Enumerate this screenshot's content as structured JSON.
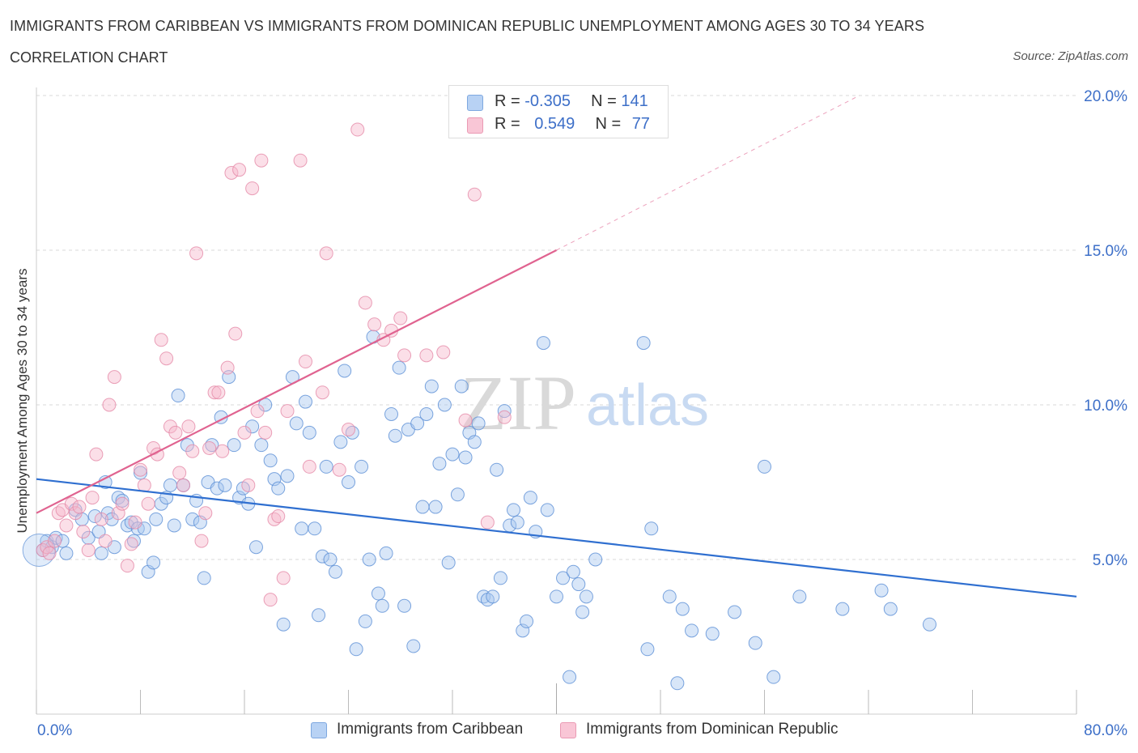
{
  "title": "IMMIGRANTS FROM CARIBBEAN VS IMMIGRANTS FROM DOMINICAN REPUBLIC UNEMPLOYMENT AMONG AGES 30 TO 34 YEARS",
  "subtitle": "CORRELATION CHART",
  "source": "Source: ZipAtlas.com",
  "watermark": {
    "zip": "ZIP",
    "atlas": "atlas"
  },
  "legend_top": {
    "rows": [
      {
        "r_label": "R = ",
        "r_value": "-0.305",
        "n_label": "N = ",
        "n_value": "141"
      },
      {
        "r_label": "R = ",
        "r_value": "0.549",
        "n_label": "N = ",
        "n_value": "77"
      }
    ]
  },
  "colors": {
    "blue_fill": "#a8c8f0",
    "blue_stroke": "#5b8fd6",
    "blue_line": "#2f6fd0",
    "pink_fill": "#f6b8cc",
    "pink_stroke": "#e58aa8",
    "pink_line": "#e06390",
    "tick_label": "#3d6fc8",
    "grid": "#d8d8d8"
  },
  "chart_data": {
    "type": "scatter",
    "title": "IMMIGRANTS FROM CARIBBEAN VS IMMIGRANTS FROM DOMINICAN REPUBLIC UNEMPLOYMENT AMONG AGES 30 TO 34 YEARS",
    "subtitle": "CORRELATION CHART",
    "xlabel": "",
    "ylabel": "Unemployment Among Ages 30 to 34 years",
    "xlim": [
      0,
      80
    ],
    "ylim": [
      0,
      20
    ],
    "x_tick_labels": [
      {
        "v": 0,
        "label": "0.0%"
      },
      {
        "v": 80,
        "label": "80.0%"
      }
    ],
    "y_tick_labels": [
      {
        "v": 5,
        "label": "5.0%"
      },
      {
        "v": 10,
        "label": "10.0%"
      },
      {
        "v": 15,
        "label": "15.0%"
      },
      {
        "v": 20,
        "label": "20.0%"
      }
    ],
    "legend_position": "bottom",
    "grid": true,
    "series": [
      {
        "name": "Immigrants from Caribbean",
        "color": "#a8c8f0",
        "trend": {
          "x0": 0,
          "y0": 7.6,
          "x1": 80,
          "y1": 3.8
        },
        "points": [
          [
            0.5,
            5.3
          ],
          [
            0.8,
            5.6
          ],
          [
            1.2,
            5.4
          ],
          [
            1.5,
            5.7
          ],
          [
            2.0,
            5.6
          ],
          [
            2.3,
            5.2
          ],
          [
            3.0,
            6.6
          ],
          [
            3.5,
            6.3
          ],
          [
            4.0,
            5.7
          ],
          [
            4.5,
            6.4
          ],
          [
            4.8,
            5.9
          ],
          [
            5.0,
            5.2
          ],
          [
            5.3,
            7.5
          ],
          [
            5.5,
            6.5
          ],
          [
            5.8,
            6.3
          ],
          [
            6.0,
            5.4
          ],
          [
            6.3,
            7.0
          ],
          [
            6.6,
            6.9
          ],
          [
            7.0,
            6.1
          ],
          [
            7.3,
            6.2
          ],
          [
            7.5,
            5.6
          ],
          [
            7.8,
            6.0
          ],
          [
            8.0,
            7.8
          ],
          [
            8.3,
            6.0
          ],
          [
            8.6,
            4.6
          ],
          [
            9.0,
            4.9
          ],
          [
            9.2,
            6.3
          ],
          [
            9.6,
            6.8
          ],
          [
            10.0,
            7.0
          ],
          [
            10.3,
            7.4
          ],
          [
            10.6,
            6.1
          ],
          [
            10.9,
            10.3
          ],
          [
            11.3,
            7.4
          ],
          [
            11.6,
            8.7
          ],
          [
            12.0,
            6.3
          ],
          [
            12.3,
            6.9
          ],
          [
            12.6,
            6.2
          ],
          [
            12.9,
            4.4
          ],
          [
            13.2,
            7.5
          ],
          [
            13.5,
            8.7
          ],
          [
            13.9,
            7.3
          ],
          [
            14.2,
            9.6
          ],
          [
            14.5,
            7.4
          ],
          [
            14.8,
            10.9
          ],
          [
            15.2,
            8.7
          ],
          [
            15.6,
            7.0
          ],
          [
            15.9,
            7.3
          ],
          [
            16.3,
            6.8
          ],
          [
            16.6,
            9.3
          ],
          [
            16.9,
            5.4
          ],
          [
            17.3,
            8.7
          ],
          [
            17.6,
            10.0
          ],
          [
            18.0,
            8.2
          ],
          [
            18.3,
            7.6
          ],
          [
            18.6,
            7.3
          ],
          [
            19.0,
            2.9
          ],
          [
            19.3,
            7.7
          ],
          [
            19.7,
            10.9
          ],
          [
            20.0,
            9.4
          ],
          [
            20.4,
            6.0
          ],
          [
            20.7,
            10.1
          ],
          [
            21.0,
            9.1
          ],
          [
            21.4,
            6.0
          ],
          [
            21.7,
            3.2
          ],
          [
            22.0,
            5.1
          ],
          [
            22.3,
            8.0
          ],
          [
            22.6,
            5.0
          ],
          [
            23.0,
            4.6
          ],
          [
            23.4,
            8.8
          ],
          [
            23.7,
            11.1
          ],
          [
            24.0,
            7.5
          ],
          [
            24.3,
            9.1
          ],
          [
            24.6,
            2.1
          ],
          [
            25.0,
            8.0
          ],
          [
            25.3,
            3.0
          ],
          [
            25.6,
            5.0
          ],
          [
            25.9,
            12.2
          ],
          [
            26.3,
            3.9
          ],
          [
            26.6,
            3.5
          ],
          [
            26.9,
            5.2
          ],
          [
            27.3,
            9.7
          ],
          [
            27.6,
            9.0
          ],
          [
            27.9,
            11.2
          ],
          [
            28.3,
            3.5
          ],
          [
            28.6,
            9.2
          ],
          [
            29.0,
            2.2
          ],
          [
            29.3,
            9.4
          ],
          [
            29.7,
            6.7
          ],
          [
            30.0,
            9.7
          ],
          [
            30.4,
            10.6
          ],
          [
            30.7,
            6.7
          ],
          [
            31.0,
            8.1
          ],
          [
            31.4,
            10.0
          ],
          [
            31.7,
            4.9
          ],
          [
            32.0,
            8.4
          ],
          [
            32.4,
            7.1
          ],
          [
            32.7,
            10.6
          ],
          [
            33.0,
            8.3
          ],
          [
            33.3,
            9.1
          ],
          [
            33.7,
            8.8
          ],
          [
            34.0,
            9.4
          ],
          [
            34.4,
            3.8
          ],
          [
            34.7,
            3.7
          ],
          [
            35.1,
            3.8
          ],
          [
            35.4,
            7.9
          ],
          [
            35.7,
            4.4
          ],
          [
            36.0,
            9.8
          ],
          [
            36.4,
            6.1
          ],
          [
            36.7,
            6.6
          ],
          [
            37.0,
            6.2
          ],
          [
            37.4,
            2.7
          ],
          [
            37.7,
            3.0
          ],
          [
            38.0,
            7.0
          ],
          [
            38.4,
            5.9
          ],
          [
            39.0,
            12.0
          ],
          [
            39.3,
            6.6
          ],
          [
            40.0,
            3.8
          ],
          [
            40.5,
            4.4
          ],
          [
            41.0,
            1.2
          ],
          [
            41.3,
            4.6
          ],
          [
            41.7,
            4.2
          ],
          [
            42.0,
            3.3
          ],
          [
            42.3,
            3.8
          ],
          [
            43.0,
            5.0
          ],
          [
            46.7,
            12.0
          ],
          [
            47.0,
            2.1
          ],
          [
            47.3,
            6.0
          ],
          [
            48.7,
            3.8
          ],
          [
            49.3,
            1.0
          ],
          [
            49.7,
            3.4
          ],
          [
            50.4,
            2.7
          ],
          [
            52.0,
            2.6
          ],
          [
            53.7,
            3.3
          ],
          [
            55.3,
            2.3
          ],
          [
            56.0,
            8.0
          ],
          [
            56.7,
            1.2
          ],
          [
            58.7,
            3.8
          ],
          [
            62.0,
            3.4
          ],
          [
            65.0,
            4.0
          ],
          [
            65.7,
            3.4
          ],
          [
            68.7,
            2.9
          ]
        ]
      },
      {
        "name": "Immigrants from Dominican Republic",
        "color": "#f6b8cc",
        "trend": {
          "x0": 0,
          "y0": 6.5,
          "x1": 40,
          "y1": 15.0
        },
        "trend_ext": {
          "x0": 40,
          "y0": 15.0,
          "x1": 63.3,
          "y1": 20.0
        },
        "points": [
          [
            0.5,
            5.3
          ],
          [
            0.8,
            5.4
          ],
          [
            1.0,
            5.2
          ],
          [
            1.4,
            5.6
          ],
          [
            1.7,
            6.5
          ],
          [
            2.0,
            6.6
          ],
          [
            2.3,
            6.1
          ],
          [
            2.7,
            6.8
          ],
          [
            3.0,
            6.5
          ],
          [
            3.3,
            6.7
          ],
          [
            3.6,
            5.9
          ],
          [
            4.0,
            5.3
          ],
          [
            4.3,
            7.0
          ],
          [
            4.6,
            8.4
          ],
          [
            5.0,
            6.3
          ],
          [
            5.3,
            5.6
          ],
          [
            5.6,
            10.0
          ],
          [
            6.0,
            10.9
          ],
          [
            6.3,
            6.5
          ],
          [
            6.6,
            6.8
          ],
          [
            7.0,
            4.8
          ],
          [
            7.3,
            5.5
          ],
          [
            7.6,
            6.2
          ],
          [
            8.0,
            7.9
          ],
          [
            8.3,
            7.4
          ],
          [
            8.6,
            6.8
          ],
          [
            9.0,
            8.6
          ],
          [
            9.3,
            8.4
          ],
          [
            9.6,
            12.1
          ],
          [
            10.0,
            11.5
          ],
          [
            10.3,
            9.3
          ],
          [
            10.7,
            9.1
          ],
          [
            11.0,
            7.8
          ],
          [
            11.3,
            7.4
          ],
          [
            11.7,
            9.3
          ],
          [
            12.0,
            8.5
          ],
          [
            12.3,
            14.9
          ],
          [
            12.7,
            5.6
          ],
          [
            13.0,
            6.5
          ],
          [
            13.3,
            8.6
          ],
          [
            13.7,
            10.4
          ],
          [
            14.0,
            10.4
          ],
          [
            14.3,
            8.5
          ],
          [
            14.7,
            11.2
          ],
          [
            15.0,
            17.5
          ],
          [
            15.3,
            12.3
          ],
          [
            15.6,
            17.6
          ],
          [
            16.0,
            9.1
          ],
          [
            16.3,
            7.4
          ],
          [
            16.6,
            17.0
          ],
          [
            17.0,
            9.8
          ],
          [
            17.3,
            17.9
          ],
          [
            17.6,
            9.1
          ],
          [
            18.0,
            3.7
          ],
          [
            18.3,
            6.3
          ],
          [
            18.6,
            6.4
          ],
          [
            19.0,
            4.4
          ],
          [
            19.3,
            9.8
          ],
          [
            20.3,
            17.9
          ],
          [
            20.7,
            11.4
          ],
          [
            21.0,
            8.0
          ],
          [
            22.0,
            10.4
          ],
          [
            22.3,
            14.9
          ],
          [
            23.3,
            7.9
          ],
          [
            24.0,
            9.2
          ],
          [
            24.7,
            18.9
          ],
          [
            25.3,
            13.3
          ],
          [
            26.0,
            12.6
          ],
          [
            26.7,
            12.1
          ],
          [
            27.3,
            12.4
          ],
          [
            28.0,
            12.8
          ],
          [
            28.3,
            11.6
          ],
          [
            30.0,
            11.6
          ],
          [
            31.3,
            11.7
          ],
          [
            33.0,
            9.5
          ],
          [
            33.7,
            16.8
          ],
          [
            34.7,
            6.2
          ],
          [
            36.0,
            9.6
          ]
        ]
      }
    ]
  }
}
